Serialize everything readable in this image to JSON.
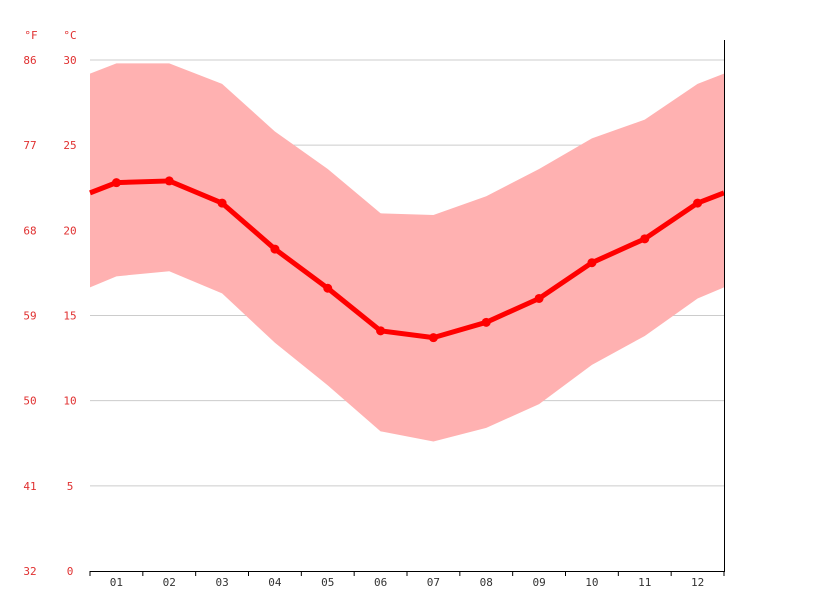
{
  "chart_data": {
    "type": "line",
    "title": "",
    "units": {
      "f": "°F",
      "c": "°C"
    },
    "y_ticks_c": [
      "0",
      "5",
      "10",
      "15",
      "20",
      "25",
      "30"
    ],
    "y_ticks_f": [
      "32",
      "41",
      "50",
      "59",
      "68",
      "77",
      "86"
    ],
    "ylim": [
      0,
      30
    ],
    "grid": true,
    "categories": [
      "01",
      "02",
      "03",
      "04",
      "05",
      "06",
      "07",
      "08",
      "09",
      "10",
      "11",
      "12"
    ],
    "series": [
      {
        "values": [
          22.8,
          22.9,
          21.6,
          18.9,
          16.6,
          14.1,
          13.7,
          14.6,
          16.0,
          18.1,
          19.5,
          21.6
        ]
      }
    ],
    "band": {
      "max": [
        29.8,
        29.8,
        28.6,
        25.8,
        23.6,
        21.0,
        20.9,
        22.0,
        23.6,
        25.4,
        26.5,
        28.6
      ],
      "min": [
        17.3,
        17.6,
        16.3,
        13.4,
        10.9,
        8.2,
        7.6,
        8.4,
        9.8,
        12.1,
        13.8,
        16.0
      ]
    },
    "colors": {
      "line": "#ff0000",
      "band": "#ffb1b1",
      "tick_text": "#e03030"
    }
  }
}
